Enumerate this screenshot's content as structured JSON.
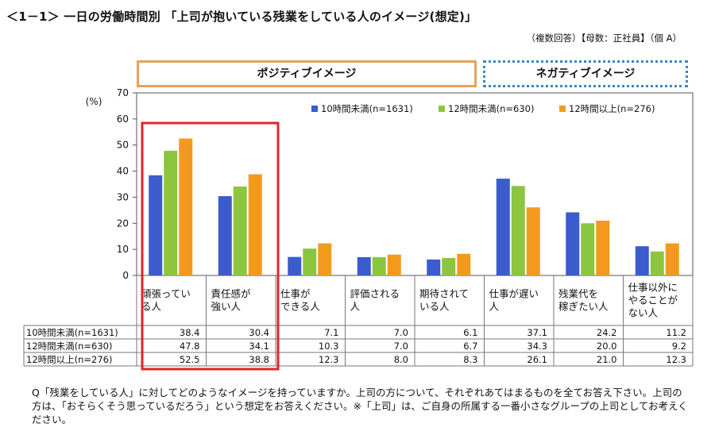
{
  "title": "＜1－1＞ 一日の労働時間別 「上司が抱いている残業をしている人のイメージ(想定)」",
  "subtitle": "（複数回答）【母数：正社員】（個 A）",
  "group_labels": {
    "positive": "ポジティブイメージ",
    "negative": "ネガティブイメージ"
  },
  "note": "Q「残業をしている人」に対してどのようなイメージを持っていますか。上司の方について、それぞれあてはまるものを全てお答え下さい。上司の方は、「おそらくそう思っているだろう」という想定をお答えください。※「上司」は、ご自身の所属する一番小さなグループの上司としてお考えください。",
  "colors": {
    "series1": "#3a5ccc",
    "series2": "#8cc63f",
    "series3": "#f39a1e",
    "highlight": "#e0262a",
    "positive_border": "#e8a35a",
    "negative_border": "#3a86c8"
  },
  "chart_data": {
    "type": "bar",
    "ylabel": "(%)",
    "ylim": [
      0,
      70
    ],
    "yticks": [
      0,
      10,
      20,
      30,
      40,
      50,
      60,
      70
    ],
    "legend_position": "top-right",
    "categories": [
      "頑張っている人",
      "責任感が強い人",
      "仕事ができる人",
      "評価される人",
      "期待されている人",
      "仕事が遅い人",
      "残業代を稼ぎたい人",
      "仕事以外にやることがない人"
    ],
    "category_lines": [
      [
        "頑張ってい",
        "る人"
      ],
      [
        "責任感が",
        "強い人"
      ],
      [
        "仕事が",
        "できる人"
      ],
      [
        "評価される",
        "人"
      ],
      [
        "期待されて",
        "いる人"
      ],
      [
        "仕事が遅い",
        "人"
      ],
      [
        "残業代を",
        "稼ぎたい人"
      ],
      [
        "仕事以外に",
        "やることが",
        "ない人"
      ]
    ],
    "series": [
      {
        "name": "10時間未満(n=1631)",
        "values": [
          38.4,
          30.4,
          7.1,
          7.0,
          6.1,
          37.1,
          24.2,
          11.2
        ]
      },
      {
        "name": "12時間未満(n=630)",
        "values": [
          47.8,
          34.1,
          10.3,
          7.0,
          6.7,
          34.3,
          20.0,
          9.2
        ]
      },
      {
        "name": "12時間以上(n=276)",
        "values": [
          52.5,
          38.8,
          12.3,
          8.0,
          8.3,
          26.1,
          21.0,
          12.3
        ]
      }
    ],
    "table_value_labels": [
      [
        "38.4",
        "30.4",
        "7.1",
        "7.0",
        "6.1",
        "37.1",
        "24.2",
        "11.2"
      ],
      [
        "47.8",
        "34.1",
        "10.3",
        "7.0",
        "6.7",
        "34.3",
        "20.0",
        "9.2"
      ],
      [
        "52.5",
        "38.8",
        "12.3",
        "8.0",
        "8.3",
        "26.1",
        "21.0",
        "12.3"
      ]
    ]
  }
}
